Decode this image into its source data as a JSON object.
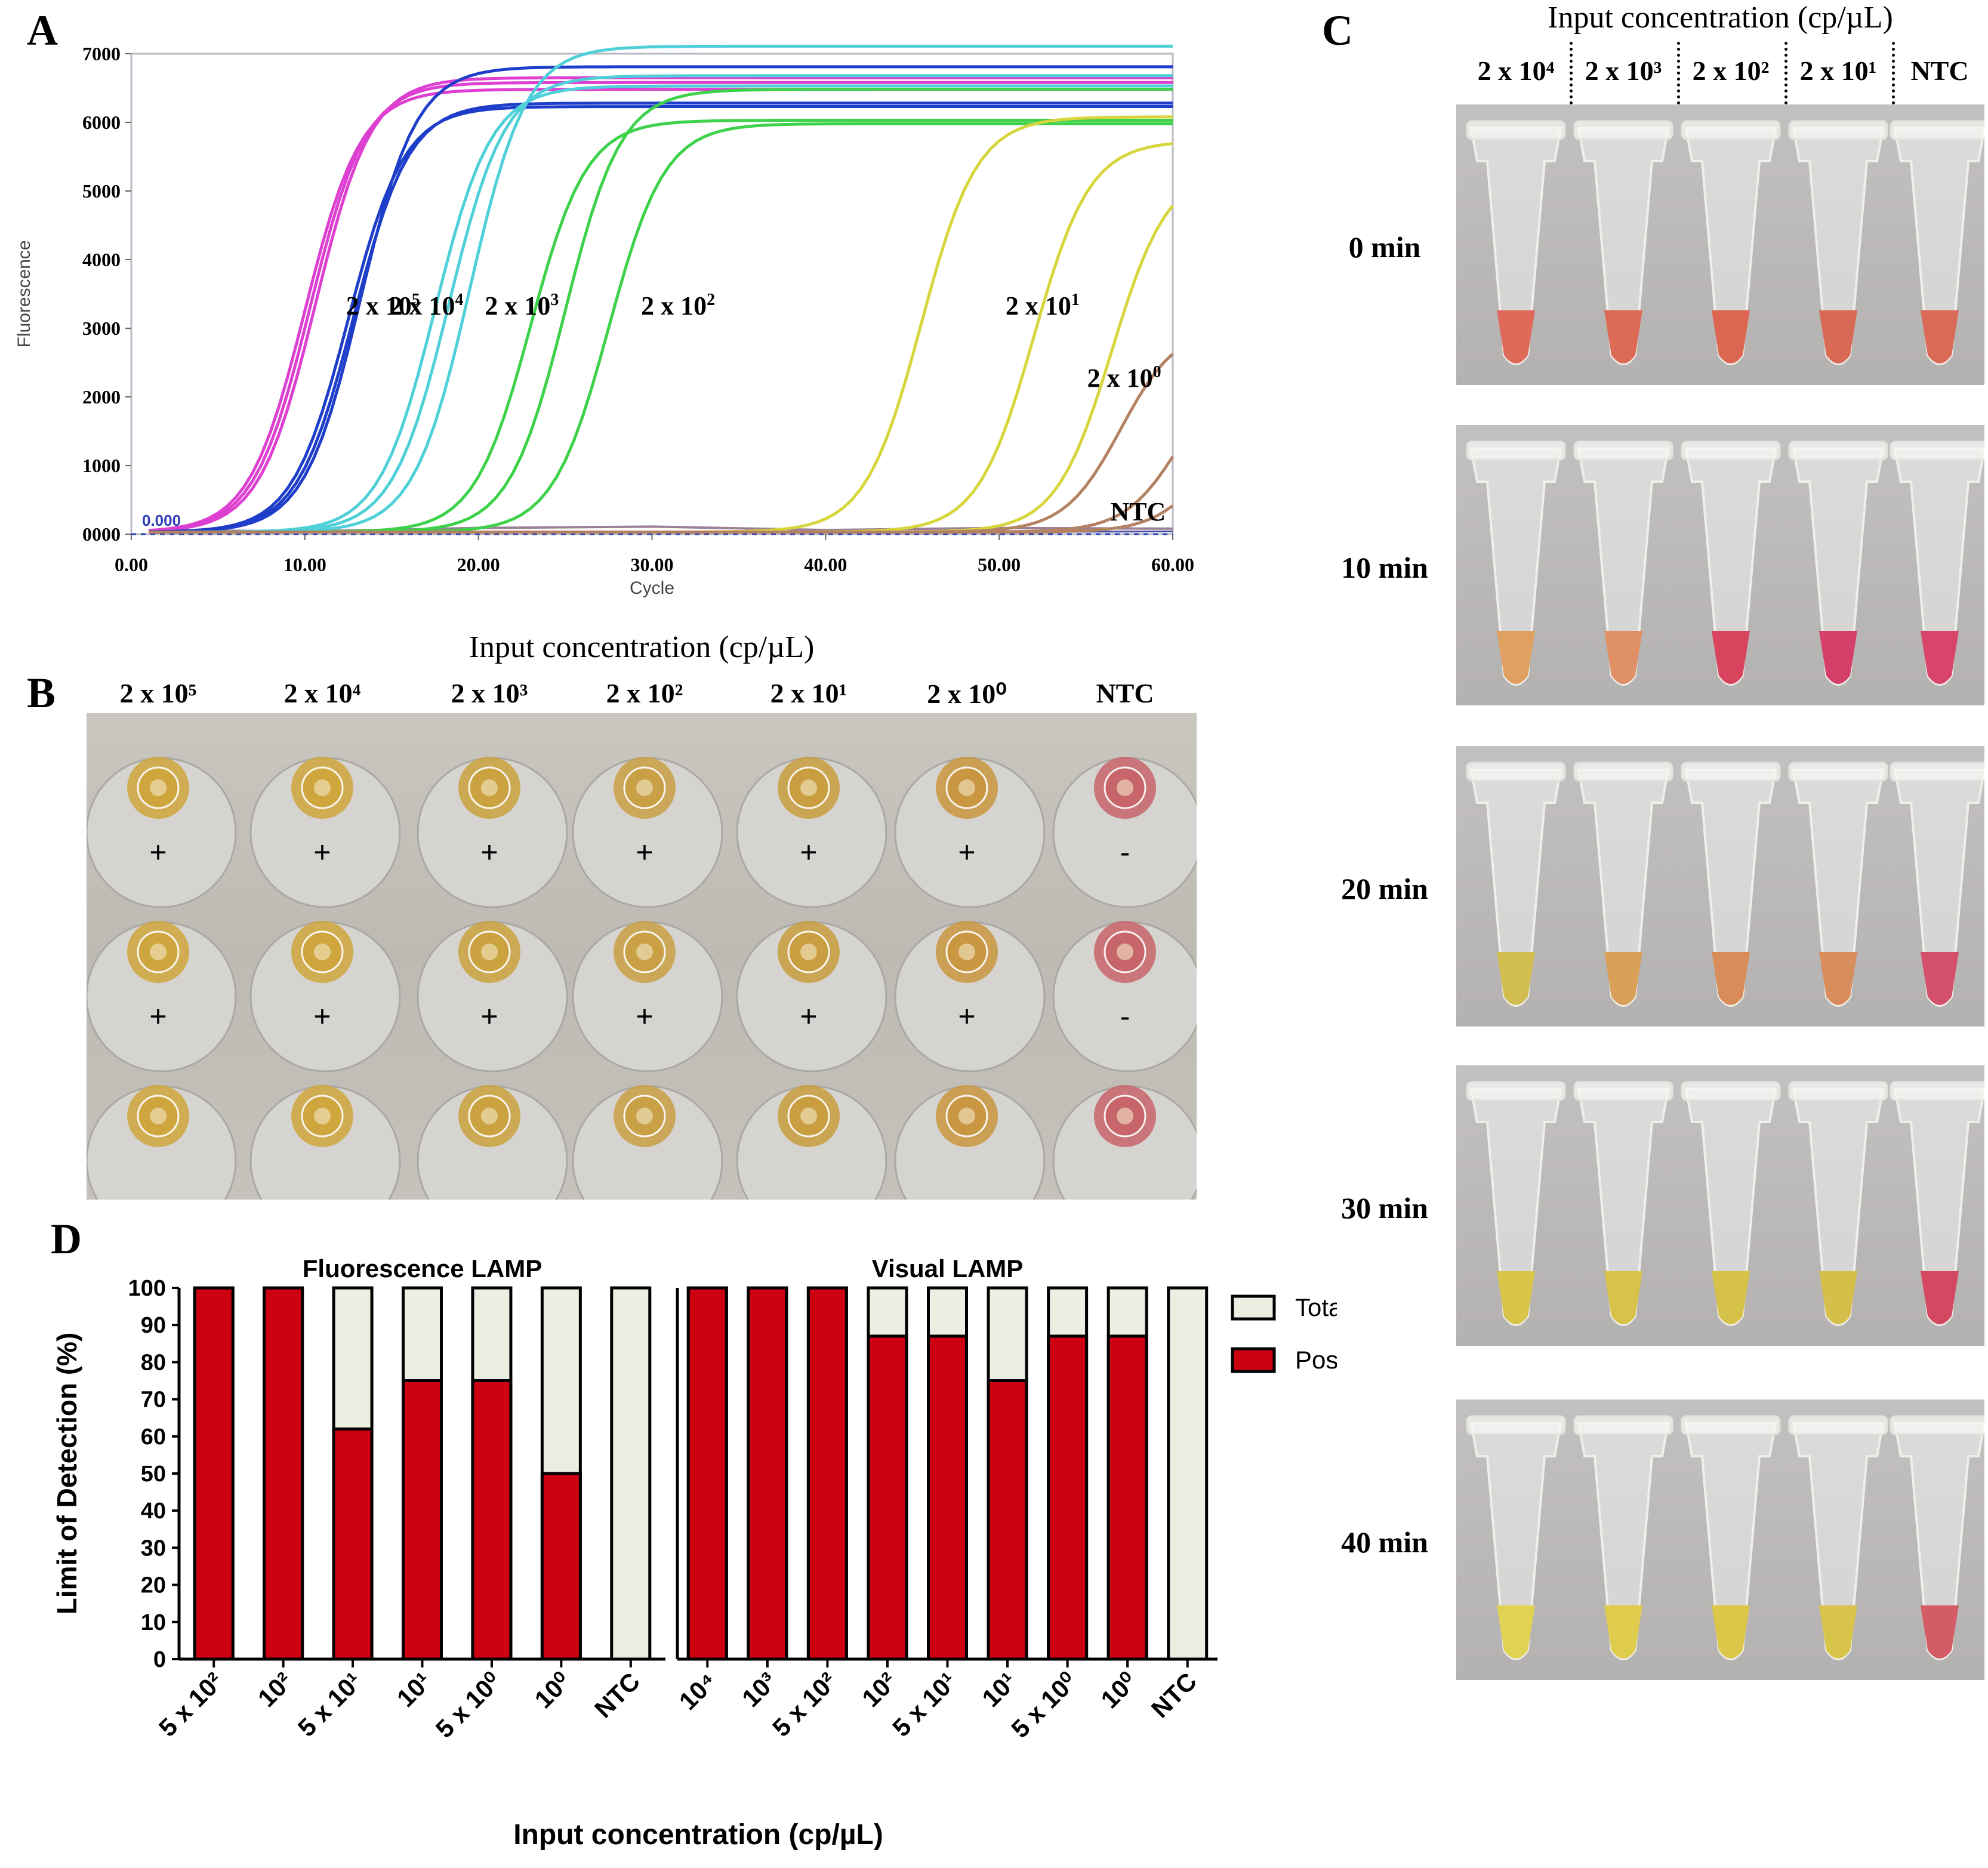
{
  "panels": {
    "a": "A",
    "b": "B",
    "c": "C",
    "d": "D"
  },
  "chart_data": [
    {
      "id": "A",
      "type": "line",
      "ylabel": "Fluorescence",
      "xlabel": "Cycle",
      "xlim": [
        0,
        60
      ],
      "ylim": [
        0,
        7000
      ],
      "xticks": [
        "0.00",
        "10.00",
        "20.00",
        "30.00",
        "40.00",
        "50.00",
        "60.00"
      ],
      "yticks": [
        "0000",
        "1000",
        "2000",
        "3000",
        "4000",
        "5000",
        "6000",
        "7000"
      ],
      "threshold_label": "0.000",
      "series": [
        {
          "name": "2 x 10⁵",
          "label": "2 x 10",
          "sup": "5",
          "color": "#dd3fd1",
          "curves": [
            [
              10.0,
              6450
            ],
            [
              10.3,
              6550
            ],
            [
              10.6,
              6620
            ]
          ]
        },
        {
          "name": "2 x 10⁴",
          "label": "2 x 10",
          "sup": "4",
          "color": "#1e3ec9",
          "curves": [
            [
              12.5,
              6200
            ],
            [
              12.8,
              6250
            ],
            [
              13.2,
              6780
            ]
          ]
        },
        {
          "name": "2 x 10³",
          "label": "2 x 10",
          "sup": "3",
          "color": "#4fd0d8",
          "curves": [
            [
              17.5,
              6500
            ],
            [
              18.3,
              6650
            ],
            [
              19.5,
              7080
            ]
          ]
        },
        {
          "name": "2 x 10²",
          "label": "2 x 10",
          "sup": "2",
          "color": "#3ed14a",
          "curves": [
            [
              23.0,
              6000
            ],
            [
              25.0,
              6450
            ],
            [
              27.5,
              5950
            ]
          ]
        },
        {
          "name": "2 x 10¹",
          "label": "2 x 10",
          "sup": "1",
          "color": "#d6d63c",
          "curves": [
            [
              45.5,
              6050
            ],
            [
              52.0,
              5700
            ],
            [
              56.5,
              5300
            ]
          ]
        },
        {
          "name": "2 x 10⁰",
          "label": "2 x 10",
          "sup": "0",
          "color": "#b48262",
          "curves": [
            [
              57.0,
              3000
            ],
            [
              60.5,
              2600
            ],
            [
              62.5,
              2200
            ]
          ]
        },
        {
          "name": "NTC",
          "label": "NTC",
          "sup": "",
          "color": "#9c7f96",
          "curves": []
        }
      ]
    },
    {
      "id": "D",
      "type": "bar",
      "ylabel": "Limit of Detection (%)",
      "xlabel": "Input concentration (cp/µL)",
      "ylim": [
        0,
        100
      ],
      "yticks": [
        0,
        10,
        20,
        30,
        40,
        50,
        60,
        70,
        80,
        90,
        100
      ],
      "legend": [
        {
          "name": "Total",
          "color": "#ebeee0"
        },
        {
          "name": "Positive",
          "color": "#cc0011"
        }
      ],
      "legend_position": "right",
      "groups": [
        {
          "title": "Fluorescence LAMP",
          "categories": [
            "5 x 10²",
            "10²",
            "5 x 10¹",
            "10¹",
            "5 x 10⁰",
            "10⁰",
            "NTC"
          ],
          "series": [
            {
              "name": "Total",
              "values": [
                100,
                100,
                100,
                100,
                100,
                100,
                100
              ]
            },
            {
              "name": "Positive",
              "values": [
                100,
                100,
                62,
                75,
                75,
                50,
                0
              ]
            }
          ]
        },
        {
          "title": "Visual LAMP",
          "categories": [
            "10⁴",
            "10³",
            "5 x 10²",
            "10²",
            "5 x 10¹",
            "10¹",
            "5 x 10⁰",
            "10⁰",
            "NTC"
          ],
          "series": [
            {
              "name": "Total",
              "values": [
                100,
                100,
                100,
                100,
                100,
                100,
                100,
                100,
                100
              ]
            },
            {
              "name": "Positive",
              "values": [
                100,
                100,
                100,
                87,
                87,
                75,
                87,
                87,
                0
              ]
            }
          ]
        }
      ]
    }
  ],
  "panel_b": {
    "title": "Input concentration (cp/µL)",
    "columns": [
      {
        "label": "2 x 10⁵",
        "color": "#cfa63c"
      },
      {
        "label": "2 x 10⁴",
        "color": "#cfa63c"
      },
      {
        "label": "2 x 10³",
        "color": "#caa23e"
      },
      {
        "label": "2 x 10²",
        "color": "#c9a044"
      },
      {
        "label": "2 x 10¹",
        "color": "#c89e3e"
      },
      {
        "label": "2 x 10⁰",
        "color": "#c99640"
      },
      {
        "label": "NTC",
        "color": "#c8646a"
      }
    ],
    "signs": [
      [
        "+",
        "+",
        "+",
        "+",
        "+",
        "+",
        "-"
      ],
      [
        "+",
        "+",
        "+",
        "+",
        "+",
        "+",
        "-"
      ]
    ]
  },
  "panel_c": {
    "title": "Input concentration (cp/µL)",
    "columns": [
      "2 x 10⁴",
      "2 x 10³",
      "2 x 10²",
      "2 x 10¹",
      "NTC"
    ],
    "rows": [
      {
        "time": "0 min",
        "colors": [
          "#e06a5a",
          "#dc6a55",
          "#dc6650",
          "#d86a55",
          "#d86a56"
        ]
      },
      {
        "time": "10 min",
        "colors": [
          "#e0a060",
          "#e09066",
          "#d8445e",
          "#d4406a",
          "#d8446a"
        ]
      },
      {
        "time": "20 min",
        "colors": [
          "#d2be50",
          "#d8a058",
          "#d88c5a",
          "#d88e5c",
          "#d4506a"
        ]
      },
      {
        "time": "30 min",
        "colors": [
          "#d8c448",
          "#d8c24a",
          "#d6c248",
          "#d6be4a",
          "#d44862"
        ]
      },
      {
        "time": "40 min",
        "colors": [
          "#e2d254",
          "#e0cc4c",
          "#dcc648",
          "#d8c44a",
          "#d45c66"
        ]
      }
    ]
  }
}
